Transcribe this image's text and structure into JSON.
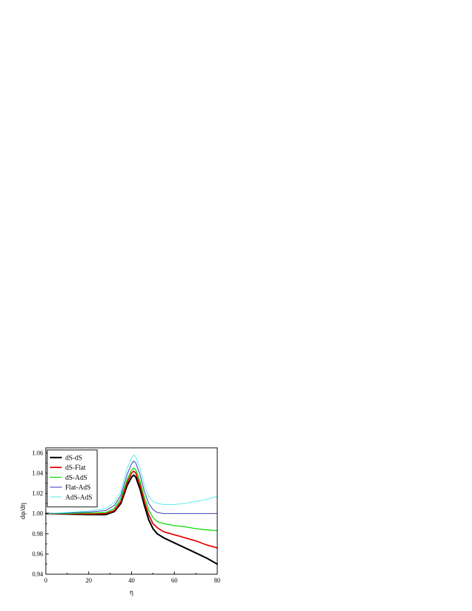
{
  "chart_data": {
    "type": "line",
    "xlabel": "η",
    "ylabel": "dφ/dη",
    "xlim": [
      0,
      80
    ],
    "ylim": [
      0.94,
      1.065
    ],
    "xticks": [
      "0",
      "20",
      "40",
      "60",
      "80"
    ],
    "xtick_values": [
      0,
      20,
      40,
      60,
      80
    ],
    "yticks": [
      "0.94",
      "0.96",
      "0.98",
      "1.00",
      "1.02",
      "1.04",
      "1.06"
    ],
    "ytick_values": [
      0.94,
      0.96,
      0.98,
      1.0,
      1.02,
      1.04,
      1.06
    ],
    "grid": false,
    "legend_position": "top-left",
    "series": [
      {
        "name": "dS-dS",
        "color": "#000000",
        "x": [
          0,
          10,
          20,
          28,
          32,
          35,
          38,
          40,
          41,
          42,
          44,
          46,
          48,
          50,
          52,
          55,
          60,
          65,
          70,
          75,
          80
        ],
        "y": [
          1.0,
          0.9995,
          0.999,
          0.999,
          1.002,
          1.01,
          1.028,
          1.036,
          1.038,
          1.036,
          1.024,
          1.008,
          0.994,
          0.985,
          0.98,
          0.976,
          0.971,
          0.966,
          0.961,
          0.956,
          0.95
        ]
      },
      {
        "name": "dS-Flat",
        "color": "#e60000",
        "x": [
          0,
          10,
          20,
          28,
          32,
          35,
          38,
          40,
          41,
          42,
          44,
          46,
          48,
          50,
          52,
          55,
          60,
          65,
          70,
          75,
          80
        ],
        "y": [
          1.0,
          0.9998,
          0.9995,
          1.0,
          1.003,
          1.012,
          1.031,
          1.04,
          1.042,
          1.04,
          1.028,
          1.012,
          0.999,
          0.99,
          0.986,
          0.982,
          0.979,
          0.976,
          0.973,
          0.969,
          0.966
        ]
      },
      {
        "name": "dS-AdS",
        "color": "#00dd00",
        "x": [
          0,
          10,
          20,
          28,
          32,
          35,
          38,
          40,
          41,
          42,
          44,
          46,
          48,
          50,
          52,
          55,
          60,
          65,
          70,
          75,
          80
        ],
        "y": [
          1.0,
          1.0,
          1.0005,
          1.001,
          1.005,
          1.015,
          1.034,
          1.043,
          1.045,
          1.043,
          1.032,
          1.016,
          1.004,
          0.996,
          0.992,
          0.99,
          0.988,
          0.987,
          0.985,
          0.984,
          0.983
        ]
      },
      {
        "name": "Flat-AdS",
        "color": "#3333bb",
        "x": [
          0,
          10,
          20,
          28,
          32,
          35,
          38,
          40,
          41,
          42,
          44,
          46,
          48,
          50,
          52,
          55,
          58,
          60,
          65,
          70,
          75,
          80
        ],
        "y": [
          1.0,
          1.0005,
          1.0015,
          1.003,
          1.008,
          1.018,
          1.039,
          1.049,
          1.052,
          1.05,
          1.038,
          1.022,
          1.01,
          1.004,
          1.001,
          1.0,
          1.0,
          1.0,
          1.0,
          1.0,
          1.0,
          1.0
        ]
      },
      {
        "name": "AdS-AdS",
        "color": "#55eeee",
        "x": [
          0,
          10,
          20,
          28,
          32,
          35,
          38,
          40,
          41,
          42,
          44,
          46,
          48,
          50,
          52,
          55,
          58,
          60,
          65,
          70,
          75,
          80
        ],
        "y": [
          1.0,
          1.001,
          1.0025,
          1.005,
          1.011,
          1.022,
          1.045,
          1.055,
          1.058,
          1.056,
          1.044,
          1.028,
          1.017,
          1.012,
          1.01,
          1.009,
          1.009,
          1.009,
          1.01,
          1.012,
          1.014,
          1.017
        ]
      }
    ]
  }
}
